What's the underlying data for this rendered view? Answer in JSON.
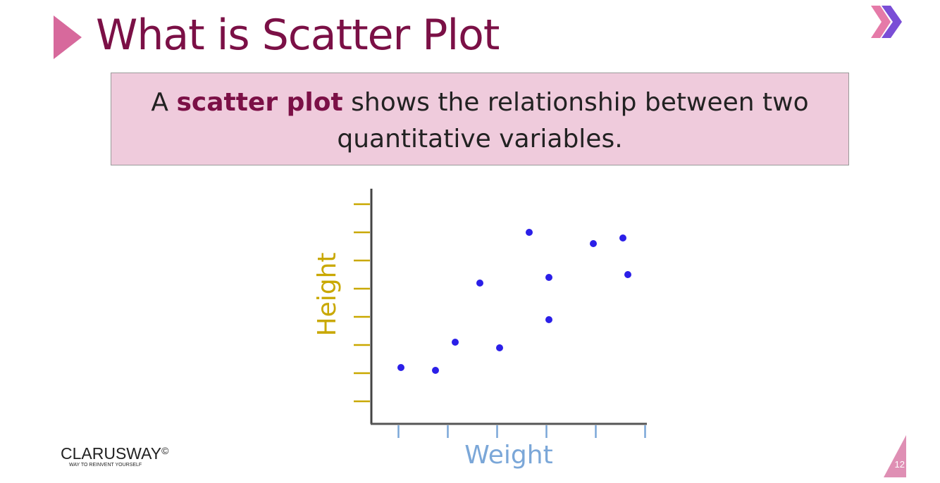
{
  "slide": {
    "title": "What is Scatter Plot",
    "definition": {
      "prefix": "A ",
      "emphasis": "scatter plot",
      "suffix": " shows the relationship between two quantitative variables."
    },
    "logo_name": "CLARUSWAY",
    "logo_symbol": "©",
    "logo_tagline": "WAY TO REINVENT YOURSELF",
    "page_number": "12",
    "colors": {
      "title": "#7b1046",
      "accent_pink": "#d7699c",
      "box_fill": "#efcbdc",
      "x_axis_color": "#7ba7d8",
      "y_axis_color": "#c9a800",
      "point_color": "#2b1fe8"
    }
  },
  "chart_data": {
    "type": "scatter",
    "xlabel": "Weight",
    "ylabel": "Height",
    "xlim": [
      0,
      5.5
    ],
    "ylim": [
      0,
      8.3
    ],
    "x_ticks": [
      0.55,
      1.55,
      2.55,
      3.55,
      4.55,
      5.55
    ],
    "y_ticks": [
      0.8,
      1.8,
      2.8,
      3.8,
      4.8,
      5.8,
      6.8,
      7.8
    ],
    "grid": false,
    "series": [
      {
        "points": [
          [
            0.6,
            2.0
          ],
          [
            1.3,
            1.9
          ],
          [
            1.7,
            2.9
          ],
          [
            2.2,
            5.0
          ],
          [
            2.6,
            2.7
          ],
          [
            3.2,
            6.8
          ],
          [
            3.6,
            3.7
          ],
          [
            3.6,
            5.2
          ],
          [
            4.5,
            6.4
          ],
          [
            5.1,
            6.6
          ],
          [
            5.2,
            5.3
          ]
        ]
      }
    ]
  }
}
